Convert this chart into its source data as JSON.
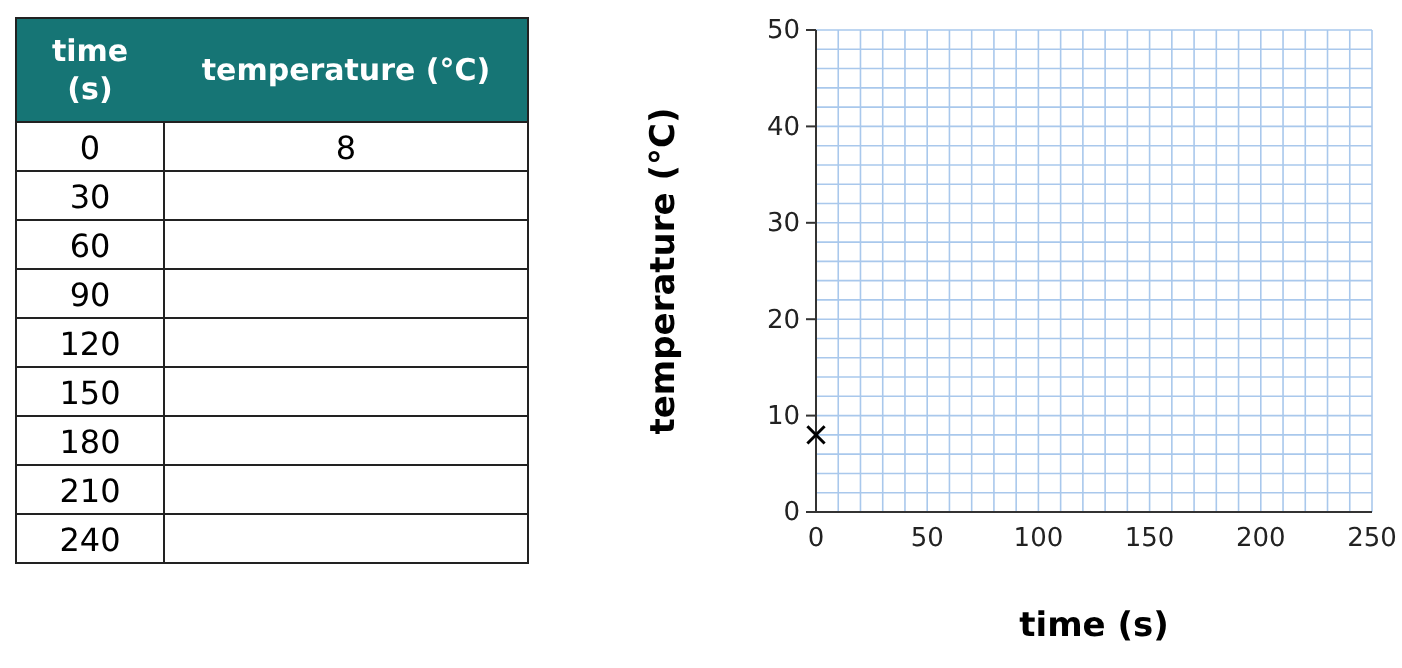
{
  "chart_data": [
    {
      "type": "heatmap",
      "ylabel": "time (s)",
      "categories": [
        "temperature (°C)"
      ],
      "y_categories": [
        "0",
        "30",
        "60",
        "90",
        "120",
        "150",
        "180",
        "210",
        "240"
      ],
      "cells": [
        [
          8
        ],
        [
          null
        ],
        [
          null
        ],
        [
          null
        ],
        [
          null
        ],
        [
          null
        ],
        [
          null
        ],
        [
          null
        ],
        [
          null
        ]
      ],
      "data_labels": true
    },
    {
      "type": "scatter",
      "xlabel": "time (s)",
      "ylabel": "temperature (°C)",
      "x": [
        0
      ],
      "values": [
        8
      ],
      "marker": "cross",
      "color": "#000000",
      "xlim": [
        0,
        250
      ],
      "ylim": [
        0,
        50
      ],
      "xticks": [
        0,
        {
          "value": 10,
          "label": null
        },
        {
          "value": 20,
          "label": null
        },
        {
          "value": 30,
          "label": null
        },
        {
          "value": 40,
          "label": null
        },
        50,
        {
          "value": 60,
          "label": null
        },
        {
          "value": 70,
          "label": null
        },
        {
          "value": 80,
          "label": null
        },
        {
          "value": 90,
          "label": null
        },
        100,
        {
          "value": 110,
          "label": null
        },
        {
          "value": 120,
          "label": null
        },
        {
          "value": 130,
          "label": null
        },
        {
          "value": 140,
          "label": null
        },
        150,
        {
          "value": 160,
          "label": null
        },
        {
          "value": 170,
          "label": null
        },
        {
          "value": 180,
          "label": null
        },
        {
          "value": 190,
          "label": null
        },
        200,
        {
          "value": 210,
          "label": null
        },
        {
          "value": 220,
          "label": null
        },
        {
          "value": 230,
          "label": null
        },
        {
          "value": 240,
          "label": null
        },
        250
      ],
      "yticks": [
        0,
        {
          "value": 2,
          "label": null
        },
        {
          "value": 4,
          "label": null
        },
        {
          "value": 6,
          "label": null
        },
        {
          "value": 8,
          "label": null
        },
        10,
        {
          "value": 12,
          "label": null
        },
        {
          "value": 14,
          "label": null
        },
        {
          "value": 16,
          "label": null
        },
        {
          "value": 18,
          "label": null
        },
        20,
        {
          "value": 22,
          "label": null
        },
        {
          "value": 24,
          "label": null
        },
        {
          "value": 26,
          "label": null
        },
        {
          "value": 28,
          "label": null
        },
        30,
        {
          "value": 32,
          "label": null
        },
        {
          "value": 34,
          "label": null
        },
        {
          "value": 36,
          "label": null
        },
        {
          "value": 38,
          "label": null
        },
        40,
        {
          "value": 42,
          "label": null
        },
        {
          "value": 44,
          "label": null
        },
        {
          "value": 46,
          "label": null
        },
        {
          "value": 48,
          "label": null
        },
        50
      ],
      "grid": true
    }
  ]
}
